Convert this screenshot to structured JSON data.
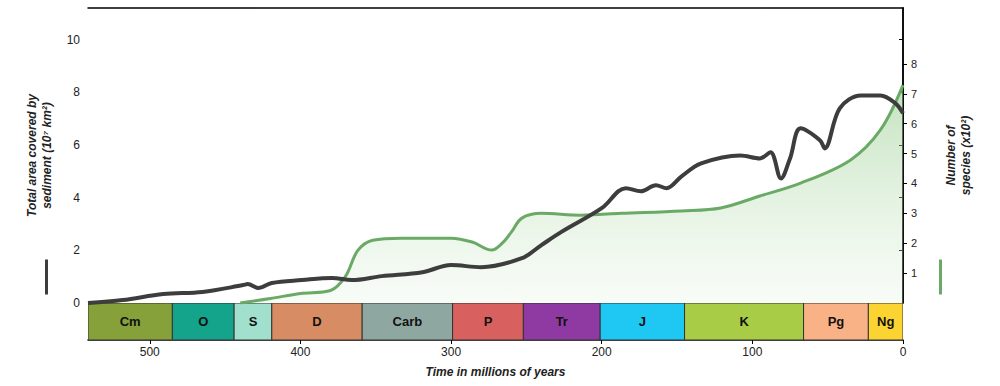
{
  "chart_data": {
    "type": "line",
    "xlabel": "Time in millions of years",
    "xlim": [
      541,
      0
    ],
    "xticks": [
      500,
      400,
      300,
      200,
      100,
      0
    ],
    "ylabel": "Total area covered by\nsediment (10⁷ km²)",
    "ylim": [
      0,
      11.2
    ],
    "yticks": [
      0,
      2,
      4,
      6,
      8,
      10
    ],
    "y2label": "Number of\nspecies (x10²)",
    "y2lim": [
      0,
      9.87
    ],
    "y2ticks": [
      1,
      2,
      3,
      4,
      5,
      6,
      7,
      8
    ],
    "grid": false,
    "series": [
      {
        "type": "area",
        "axis": "y2",
        "color": "#6aaa66",
        "x": [
          440,
          420,
          400,
          380,
          370,
          362,
          352,
          333,
          300,
          286,
          273,
          266,
          260,
          253,
          240,
          214,
          187,
          147,
          121,
          95,
          68,
          35,
          15,
          0
        ],
        "values": [
          0,
          0.15,
          0.32,
          0.42,
          0.9,
          1.75,
          2.1,
          2.17,
          2.17,
          2.04,
          1.77,
          2.0,
          2.37,
          2.84,
          3.0,
          2.94,
          3.0,
          3.08,
          3.18,
          3.58,
          4.01,
          4.78,
          5.79,
          7.29
        ]
      },
      {
        "type": "line",
        "color": "#3d3d3d",
        "x": [
          541,
          518,
          491,
          465,
          438,
          435,
          428,
          419,
          399,
          379,
          366,
          346,
          319,
          300,
          280,
          253,
          240,
          227,
          200,
          184,
          174,
          164,
          157,
          147,
          134,
          108,
          95,
          88,
          81,
          75,
          68,
          55,
          52,
          42,
          28,
          15,
          5,
          0
        ],
        "values": [
          0,
          0.11,
          0.34,
          0.42,
          0.68,
          0.72,
          0.57,
          0.76,
          0.87,
          0.95,
          0.87,
          1.02,
          1.17,
          1.44,
          1.36,
          1.7,
          2.2,
          2.69,
          3.6,
          4.36,
          4.24,
          4.47,
          4.36,
          4.81,
          5.3,
          5.6,
          5.49,
          5.72,
          4.73,
          5.49,
          6.63,
          6.17,
          5.87,
          7.39,
          7.88,
          7.88,
          7.58,
          7.2
        ]
      }
    ],
    "periods": {
      "labels": [
        "Cm",
        "O",
        "S",
        "D",
        "Carb",
        "P",
        "Tr",
        "J",
        "K",
        "Pg",
        "Ng"
      ],
      "start": [
        541,
        485,
        444,
        419,
        359,
        299,
        252,
        201,
        145,
        66,
        23
      ],
      "end": [
        485,
        444,
        419,
        359,
        299,
        252,
        201,
        145,
        66,
        23,
        0
      ],
      "colors": [
        "#86a03a",
        "#14a38b",
        "#a0e0cc",
        "#d78c63",
        "#8fa7a1",
        "#d8615f",
        "#8f3aa3",
        "#1ec8f2",
        "#a9cc46",
        "#f9b286",
        "#fcd431"
      ]
    }
  }
}
